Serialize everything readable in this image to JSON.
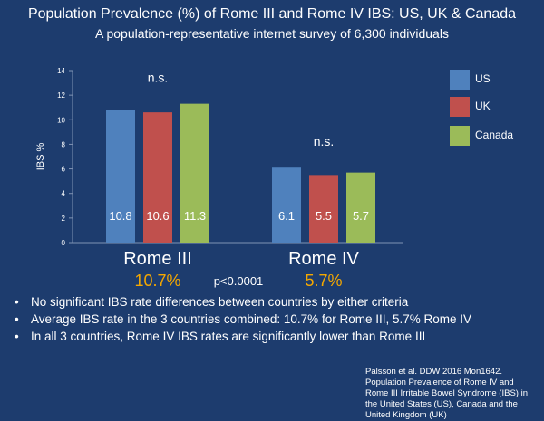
{
  "title": "Population Prevalence (%) of Rome III and Rome IV IBS: US, UK & Canada",
  "subtitle": "A population-representative internet survey of 6,300 individuals",
  "chart_data": {
    "type": "bar",
    "title": "",
    "ylabel": "IBS %",
    "xlabel": "",
    "ylim": [
      0,
      14
    ],
    "yticks": [
      0,
      2,
      4,
      6,
      8,
      10,
      12,
      14
    ],
    "categories": [
      "Rome III",
      "Rome IV"
    ],
    "series": [
      {
        "name": "US",
        "color": "#4f81bd",
        "values": [
          10.8,
          6.1
        ],
        "labels": [
          "10.8",
          "6.1"
        ]
      },
      {
        "name": "UK",
        "color": "#c0504d",
        "values": [
          10.6,
          5.5
        ],
        "labels": [
          "10.6",
          "5.5"
        ]
      },
      {
        "name": "Canada",
        "color": "#9bbb59",
        "values": [
          11.3,
          5.7
        ],
        "labels": [
          "11.3",
          "5.7"
        ]
      }
    ],
    "annotations": [
      "n.s.",
      "n.s."
    ],
    "category_averages": [
      "10.7%",
      "5.7%"
    ],
    "comparison_label": "p<0.0001",
    "grid": false,
    "legend_position": "right"
  },
  "colors": {
    "background": "#1d3c6e",
    "average_text": "#f5a800",
    "axis": "#7f93b4"
  },
  "bullets": [
    "No significant IBS rate differences between countries by either criteria",
    "Average IBS rate in the 3 countries combined: 10.7% for Rome III, 5.7% Rome IV",
    "In all 3 countries, Rome IV IBS rates are significantly lower than Rome III"
  ],
  "bullet_symbol": "•",
  "citation": "Palsson et al. DDW 2016 Mon1642. Population Prevalence of Rome IV and Rome III Irritable Bowel Syndrome (IBS) in the United States (US), Canada and the United Kingdom (UK)"
}
